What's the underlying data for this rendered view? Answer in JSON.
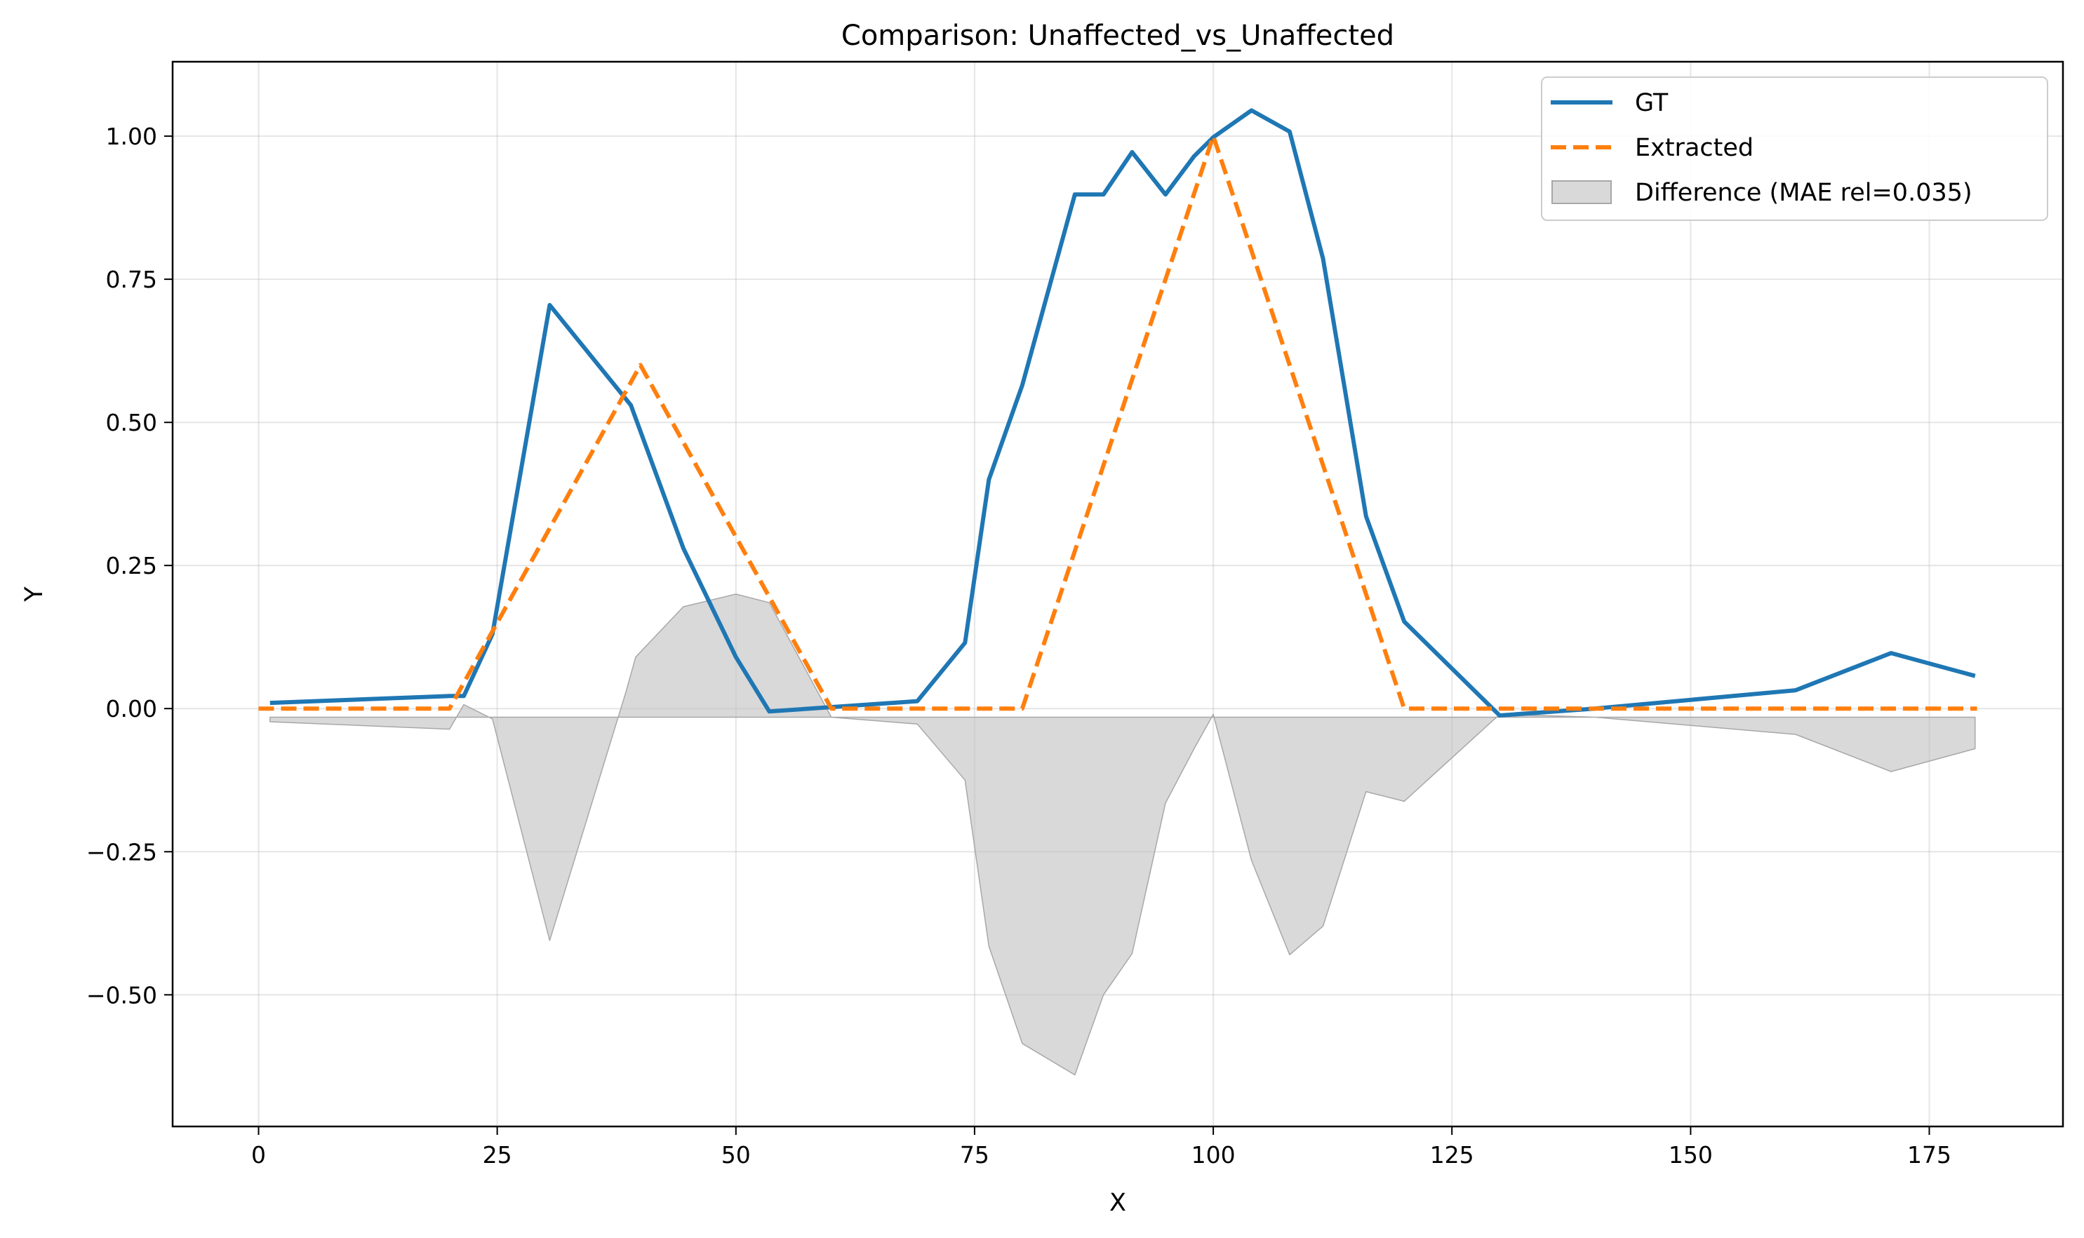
{
  "chart_data": {
    "type": "line",
    "title": "Comparison: Unaffected_vs_Unaffected",
    "xlabel": "X",
    "ylabel": "Y",
    "xlim": [
      -9,
      189
    ],
    "ylim": [
      -0.73,
      1.13
    ],
    "xticks": [
      0,
      25,
      50,
      75,
      100,
      125,
      150,
      175
    ],
    "yticks": [
      -0.5,
      -0.25,
      0.0,
      0.25,
      0.5,
      0.75,
      1.0
    ],
    "x_tick_labels": [
      "0",
      "25",
      "50",
      "75",
      "100",
      "125",
      "150",
      "175"
    ],
    "y_tick_labels": [
      "−0.50",
      "−0.25",
      "0.00",
      "0.25",
      "0.50",
      "0.75",
      "1.00"
    ],
    "grid": true,
    "legend_position": "top-right",
    "series": [
      {
        "name": "GT",
        "style": "solid",
        "color": "#1f77b4",
        "points": [
          [
            1.2,
            0.01
          ],
          [
            20,
            0.022
          ],
          [
            21.5,
            0.022
          ],
          [
            24.5,
            0.13
          ],
          [
            30.5,
            0.705
          ],
          [
            39,
            0.53
          ],
          [
            44.5,
            0.28
          ],
          [
            50,
            0.09
          ],
          [
            53.5,
            -0.005
          ],
          [
            69,
            0.013
          ],
          [
            74,
            0.115
          ],
          [
            76.5,
            0.4
          ],
          [
            80,
            0.565
          ],
          [
            85.5,
            0.898
          ],
          [
            88.5,
            0.898
          ],
          [
            91.5,
            0.972
          ],
          [
            95,
            0.898
          ],
          [
            98,
            0.965
          ],
          [
            100,
            0.998
          ],
          [
            104,
            1.045
          ],
          [
            108,
            1.008
          ],
          [
            111.5,
            0.786
          ],
          [
            116,
            0.336
          ],
          [
            120,
            0.152
          ],
          [
            130,
            -0.012
          ],
          [
            140,
            0.0
          ],
          [
            161,
            0.032
          ],
          [
            171,
            0.097
          ],
          [
            179.8,
            0.057
          ]
        ]
      },
      {
        "name": "Extracted",
        "style": "dashed",
        "color": "#ff7f0e",
        "points": [
          [
            0,
            0.0
          ],
          [
            20,
            0.0
          ],
          [
            40,
            0.6
          ],
          [
            60,
            0.0
          ],
          [
            80,
            0.0
          ],
          [
            100,
            1.0
          ],
          [
            120,
            0.0
          ],
          [
            180,
            0.0
          ]
        ]
      },
      {
        "name": "Difference (MAE rel=0.035)",
        "style": "fill",
        "color": "#bfbfbf",
        "baseline": -0.015,
        "points": [
          [
            1.2,
            -0.023
          ],
          [
            20,
            -0.036
          ],
          [
            21.5,
            0.007
          ],
          [
            24.5,
            -0.018
          ],
          [
            30.5,
            -0.405
          ],
          [
            38.5,
            0.03
          ],
          [
            39.5,
            0.09
          ],
          [
            44.5,
            0.178
          ],
          [
            50,
            0.2
          ],
          [
            53.5,
            0.185
          ],
          [
            60,
            -0.015
          ],
          [
            69,
            -0.027
          ],
          [
            74,
            -0.125
          ],
          [
            76.5,
            -0.415
          ],
          [
            80,
            -0.585
          ],
          [
            85.5,
            -0.64
          ],
          [
            88.5,
            -0.5
          ],
          [
            91.5,
            -0.428
          ],
          [
            95,
            -0.165
          ],
          [
            98,
            -0.07
          ],
          [
            100,
            -0.01
          ],
          [
            104,
            -0.265
          ],
          [
            108,
            -0.43
          ],
          [
            111.5,
            -0.38
          ],
          [
            116,
            -0.145
          ],
          [
            120,
            -0.162
          ],
          [
            130,
            -0.01
          ],
          [
            140,
            -0.015
          ],
          [
            161,
            -0.045
          ],
          [
            171,
            -0.11
          ],
          [
            179.8,
            -0.07
          ]
        ]
      }
    ]
  }
}
